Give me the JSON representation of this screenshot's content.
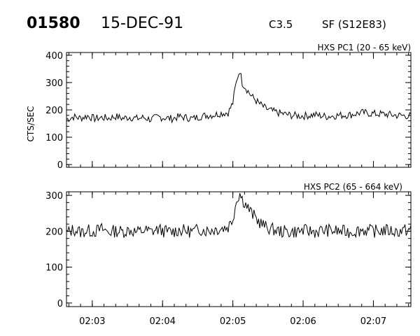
{
  "header": {
    "event_id": "01580",
    "date": "15-DEC-91",
    "flare_class": "C3.5",
    "flare_info": "SF (S12E83)"
  },
  "chart_data": [
    {
      "type": "line",
      "title": "HXS PC1 (20 - 65 keV)",
      "xlabel": "",
      "ylabel": "CTS/SEC",
      "xlim": [
        "02:02:38",
        "02:07:32"
      ],
      "ylim": [
        -10,
        410
      ],
      "yticks": [
        0,
        100,
        200,
        300,
        400
      ],
      "xticks": [
        "02:03",
        "02:04",
        "02:05",
        "02:06",
        "02:07"
      ],
      "series": [
        {
          "x": [
            "02:02:38",
            "02:02:44",
            "02:02:50",
            "02:02:56",
            "02:03:02",
            "02:03:08",
            "02:03:14",
            "02:03:20",
            "02:03:26",
            "02:03:32",
            "02:03:38",
            "02:03:44",
            "02:03:50",
            "02:03:56",
            "02:04:02",
            "02:04:08",
            "02:04:14",
            "02:04:20",
            "02:04:26",
            "02:04:32",
            "02:04:38",
            "02:04:44",
            "02:04:50",
            "02:04:56",
            "02:05:00",
            "02:05:02",
            "02:05:04",
            "02:05:06",
            "02:05:08",
            "02:05:12",
            "02:05:16",
            "02:05:22",
            "02:05:28",
            "02:05:34",
            "02:05:40",
            "02:05:50",
            "02:06:00",
            "02:06:10",
            "02:06:20",
            "02:06:30",
            "02:06:40",
            "02:06:50",
            "02:07:00",
            "02:07:10",
            "02:07:20",
            "02:07:32"
          ],
          "y": [
            165,
            175,
            170,
            178,
            168,
            172,
            170,
            176,
            169,
            174,
            168,
            172,
            165,
            174,
            171,
            168,
            175,
            172,
            168,
            176,
            180,
            182,
            188,
            190,
            225,
            280,
            320,
            345,
            300,
            275,
            250,
            225,
            205,
            195,
            188,
            180,
            178,
            182,
            176,
            180,
            182,
            190,
            186,
            184,
            180,
            178
          ]
        }
      ]
    },
    {
      "type": "line",
      "title": "HXS PC2 (65 - 664 keV)",
      "xlabel": "",
      "ylabel": "",
      "xlim": [
        "02:02:38",
        "02:07:32"
      ],
      "ylim": [
        -10,
        310
      ],
      "yticks": [
        0,
        100,
        200,
        300
      ],
      "xticks": [
        "02:03",
        "02:04",
        "02:05",
        "02:06",
        "02:07"
      ],
      "series": [
        {
          "x": [
            "02:02:38",
            "02:02:44",
            "02:02:50",
            "02:02:56",
            "02:03:02",
            "02:03:08",
            "02:03:14",
            "02:03:20",
            "02:03:26",
            "02:03:32",
            "02:03:38",
            "02:03:44",
            "02:03:50",
            "02:03:56",
            "02:04:02",
            "02:04:08",
            "02:04:14",
            "02:04:20",
            "02:04:26",
            "02:04:32",
            "02:04:38",
            "02:04:44",
            "02:04:50",
            "02:04:56",
            "02:05:00",
            "02:05:02",
            "02:05:04",
            "02:05:06",
            "02:05:08",
            "02:05:12",
            "02:05:16",
            "02:05:22",
            "02:05:28",
            "02:05:34",
            "02:05:40",
            "02:05:50",
            "02:06:00",
            "02:06:10",
            "02:06:20",
            "02:06:30",
            "02:06:40",
            "02:06:50",
            "02:07:00",
            "02:07:10",
            "02:07:20",
            "02:07:32"
          ],
          "y": [
            195,
            205,
            198,
            202,
            200,
            206,
            198,
            201,
            199,
            204,
            197,
            203,
            199,
            205,
            200,
            198,
            204,
            201,
            199,
            206,
            202,
            205,
            208,
            212,
            235,
            270,
            295,
            305,
            290,
            270,
            250,
            228,
            212,
            205,
            200,
            198,
            202,
            199,
            203,
            200,
            198,
            204,
            200,
            203,
            199,
            205
          ]
        }
      ]
    }
  ]
}
